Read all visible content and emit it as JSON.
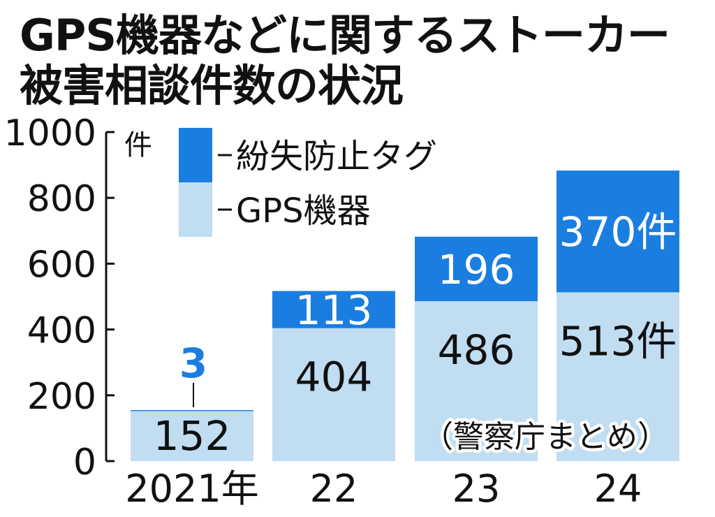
{
  "chart_data": {
    "type": "bar",
    "stacked": true,
    "title": [
      "GPS機器などに関するストーカー",
      "被害相談件数の状況"
    ],
    "source": "（警察庁まとめ）",
    "y_unit": "件",
    "ylim": [
      0,
      1000
    ],
    "yticks": [
      "0",
      "200",
      "400",
      "600",
      "800",
      "1000"
    ],
    "categories": [
      "2021年",
      "22",
      "23",
      "24"
    ],
    "legend_position": "top-left",
    "series": [
      {
        "name": "GPS機器",
        "color": "#c0ddf2",
        "values": [
          152,
          404,
          486,
          513
        ],
        "labels": [
          "152",
          "404",
          "486",
          "513件"
        ]
      },
      {
        "name": "紛失防止タグ",
        "color": "#1a7ee0",
        "values": [
          3,
          113,
          196,
          370
        ],
        "labels": [
          "3",
          "113",
          "196",
          "370件"
        ]
      }
    ]
  }
}
